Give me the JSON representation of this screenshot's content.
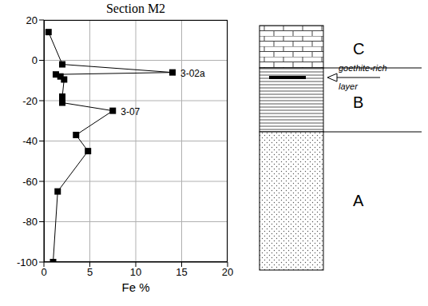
{
  "chart_data": {
    "type": "line",
    "title": "Section M2",
    "x_label": "Fe %",
    "x": [
      0.5,
      2,
      14,
      1.3,
      1.8,
      2.2,
      2.0,
      2.0,
      2.0,
      7.5,
      3.5,
      4.8,
      1.5,
      1.0
    ],
    "values": [
      14,
      -2,
      -6,
      -7,
      -8,
      -9.5,
      -18,
      -19.5,
      -21,
      -25,
      -37,
      -45,
      -65,
      -100
    ],
    "color": "#000000",
    "marker": "square",
    "line_style": "solid",
    "xlim": [
      0,
      20
    ],
    "xticks": [
      0,
      5,
      10,
      15,
      20
    ],
    "ylim": [
      -100,
      20
    ],
    "yticks": [
      -100,
      -80,
      -60,
      -40,
      -20,
      0,
      20
    ],
    "grid": true,
    "annotations": [
      {
        "text": "3-02a",
        "x": 14,
        "y": -6
      },
      {
        "text": "3-07",
        "x": 7.5,
        "y": -25
      }
    ]
  },
  "column": {
    "units": [
      "C",
      "B",
      "A"
    ],
    "marker_label": "goethite-rich layer"
  }
}
